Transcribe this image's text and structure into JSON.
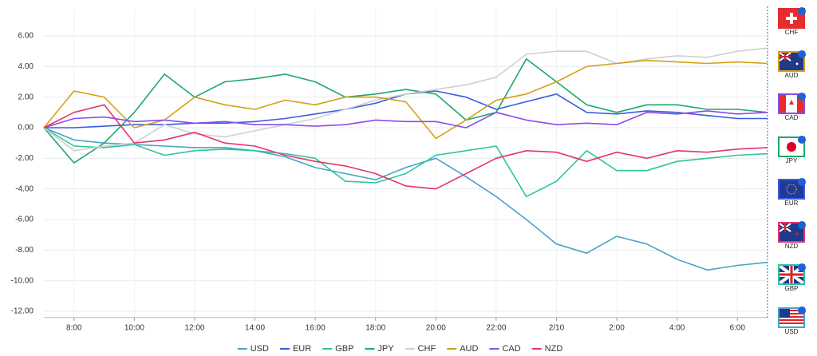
{
  "chart_data": {
    "type": "line",
    "categories": [
      null,
      "8:00",
      null,
      "10:00",
      null,
      "12:00",
      null,
      "14:00",
      null,
      "16:00",
      null,
      "18:00",
      null,
      "20:00",
      null,
      "22:00",
      null,
      "2/10",
      null,
      "2:00",
      null,
      "4:00",
      null,
      "6:00",
      null
    ],
    "ylim": [
      -12.4,
      7.8
    ],
    "yticks": [
      {
        "value": -12,
        "label": "-12.00"
      },
      {
        "value": -10,
        "label": "-10.00"
      },
      {
        "value": -8,
        "label": "-8.00"
      },
      {
        "value": -6,
        "label": "-6.00"
      },
      {
        "value": -4,
        "label": "-4.00"
      },
      {
        "value": -2,
        "label": "-2.00"
      },
      {
        "value": 0,
        "label": "0.00"
      },
      {
        "value": 2,
        "label": "2.00"
      },
      {
        "value": 4,
        "label": "4.00"
      },
      {
        "value": 6,
        "label": "6.00"
      }
    ],
    "grid": true,
    "series": [
      {
        "name": "USD",
        "color": "#4aa3c8",
        "values": [
          0,
          -0.8,
          -1.0,
          -1.1,
          -1.2,
          -1.3,
          -1.3,
          -1.5,
          -1.9,
          -2.6,
          -3.0,
          -3.4,
          -2.6,
          -2.0,
          -3.2,
          -4.5,
          -6.0,
          -7.6,
          -8.2,
          -7.1,
          -7.6,
          -8.6,
          -9.3,
          -9.0,
          -8.8
        ]
      },
      {
        "name": "EUR",
        "color": "#3a5de0",
        "values": [
          0,
          0.0,
          0.1,
          0.2,
          0.2,
          0.3,
          0.3,
          0.4,
          0.6,
          0.9,
          1.2,
          1.6,
          2.2,
          2.4,
          2.0,
          1.2,
          1.7,
          2.2,
          1.0,
          0.9,
          1.1,
          1.0,
          0.8,
          0.6,
          0.6
        ]
      },
      {
        "name": "GBP",
        "color": "#2ec4a0",
        "values": [
          0,
          -1.2,
          -1.3,
          -1.1,
          -1.8,
          -1.5,
          -1.4,
          -1.5,
          -1.7,
          -2.0,
          -3.5,
          -3.6,
          -3.0,
          -1.8,
          -1.5,
          -1.2,
          -4.5,
          -3.5,
          -1.5,
          -2.8,
          -2.8,
          -2.2,
          -2.0,
          -1.8,
          -1.7
        ]
      },
      {
        "name": "JPY",
        "color": "#1fa86a",
        "values": [
          0,
          -2.3,
          -1.0,
          1.0,
          3.5,
          2.0,
          3.0,
          3.2,
          3.5,
          3.0,
          2.0,
          2.2,
          2.5,
          2.2,
          0.5,
          1.0,
          4.5,
          3.0,
          1.5,
          1.0,
          1.5,
          1.5,
          1.2,
          1.2,
          1.0
        ]
      },
      {
        "name": "CHF",
        "color": "#d0d0d0",
        "values": [
          0,
          -1.5,
          -1.2,
          -1.0,
          0.2,
          -0.4,
          -0.6,
          -0.2,
          0.2,
          0.6,
          1.2,
          1.8,
          2.2,
          2.5,
          2.8,
          3.3,
          4.8,
          5.0,
          5.0,
          4.2,
          4.5,
          4.7,
          4.6,
          5.0,
          5.2
        ]
      },
      {
        "name": "AUD",
        "color": "#d4a017",
        "values": [
          0,
          2.4,
          2.0,
          0.0,
          0.5,
          2.0,
          1.5,
          1.2,
          1.8,
          1.5,
          2.0,
          2.0,
          1.7,
          -0.7,
          0.5,
          1.8,
          2.2,
          3.0,
          4.0,
          4.2,
          4.4,
          4.3,
          4.2,
          4.3,
          4.2
        ]
      },
      {
        "name": "CAD",
        "color": "#8a4de8",
        "values": [
          0,
          0.6,
          0.7,
          0.4,
          0.5,
          0.3,
          0.4,
          0.2,
          0.2,
          0.1,
          0.2,
          0.5,
          0.4,
          0.4,
          0.0,
          1.0,
          0.5,
          0.2,
          0.3,
          0.2,
          1.0,
          0.9,
          1.1,
          0.9,
          1.0
        ]
      },
      {
        "name": "NZD",
        "color": "#e8336d",
        "values": [
          0,
          1.0,
          1.5,
          -1.0,
          -0.8,
          -0.3,
          -1.0,
          -1.2,
          -1.8,
          -2.2,
          -2.5,
          -3.0,
          -3.8,
          -4.0,
          -3.0,
          -2.0,
          -1.5,
          -1.6,
          -2.2,
          -1.6,
          -2.0,
          -1.5,
          -1.6,
          -1.4,
          -1.3
        ]
      }
    ]
  },
  "side_panel": {
    "items": [
      "CHF",
      "AUD",
      "CAD",
      "JPY",
      "EUR",
      "NZD",
      "GBP",
      "USD"
    ]
  }
}
